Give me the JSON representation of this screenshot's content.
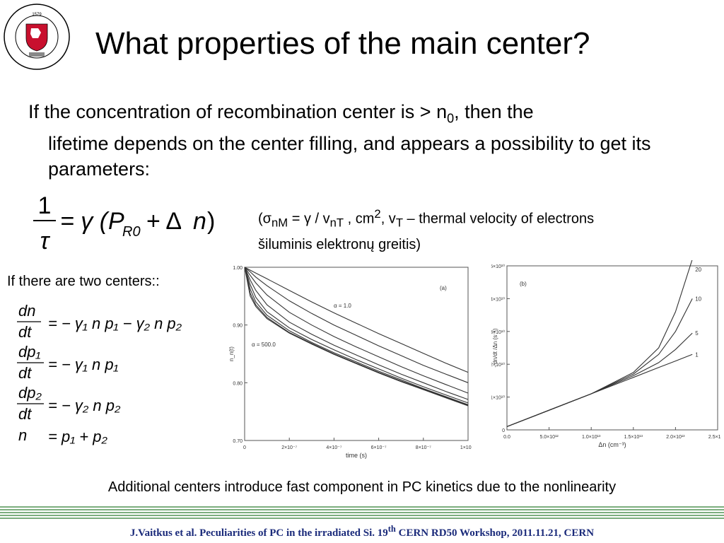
{
  "slide": {
    "title": "What properties of the main center?",
    "paragraph": {
      "part1": "If the concentration of recombination center is > n",
      "sub": "0",
      "part2": ", then the",
      "rest": "lifetime depends on the center filling, and appears a possibility to get its parameters:"
    },
    "formula1": {
      "num": "1",
      "den": "τ",
      "rhs_a": "= γ (",
      "P": "P",
      "R0": "R0",
      "rhs_b": "+ Δ",
      "n": "n",
      "close": ")"
    },
    "note": {
      "line1_a": "(σ",
      "line1_sub1": "nM",
      "line1_b": " = γ / v",
      "line1_sub2": "nT",
      "line1_c": " ,  cm",
      "line1_sup": "2",
      "line1_d": ",   v",
      "line1_sub3": "T",
      "line1_e": " – thermal velocity of electrons",
      "line2": "šiluminis elektronų greitis)"
    },
    "two_centers": "If there are two centers::",
    "equations": {
      "e1": {
        "num": "dn",
        "den": "dt",
        "rhs": "= − γ₁ n p₁ − γ₂ n p₂"
      },
      "e2": {
        "num": "dp₁",
        "den": "dt",
        "rhs": "= − γ₁ n p₁"
      },
      "e3": {
        "num": "dp₂",
        "den": "dt",
        "rhs": "= − γ₂ n p₂"
      },
      "e4": {
        "lhs": "n",
        "rhs": "= p₁ + p₂"
      }
    },
    "caption": "Additional centers introduce  fast component  in PC kinetics due to the nonlinearity",
    "footer": {
      "a": "J.Vaitkus et al. Peculiarities of PC in the irradiated Si. 19",
      "sup": "th",
      "b": " CERN RD50 Workshop, 2011.11.21, CERN"
    },
    "logo": {
      "ring_text": "VILNIAUS UNIVERSITETAS · 1579 · UNIVERSITAS VILNENSIS",
      "year": "1579",
      "shield_color": "#c8102e"
    },
    "colors": {
      "footer_text": "#1a2a7a",
      "rule": "#2e7d32"
    }
  },
  "chart_data": [
    {
      "type": "line",
      "panel_label": "(a)",
      "xlabel": "time (s)",
      "ylabel": "n_n(t)",
      "xlim": [
        0,
        1e-06
      ],
      "ylim": [
        0.7,
        1.0
      ],
      "x_ticks": [
        "0",
        "2×10⁻⁷",
        "4×10⁻⁷",
        "6×10⁻⁷",
        "8×10⁻⁷",
        "1×10⁻⁶"
      ],
      "y_ticks": [
        "0.70",
        "0.80",
        "0.90",
        "1.00"
      ],
      "annotations": [
        "α = 1.0",
        "α = 500.0"
      ],
      "x": [
        0,
        2.5e-08,
        5e-08,
        1e-07,
        2e-07,
        3e-07,
        4e-07,
        5e-07,
        6e-07,
        7e-07,
        8e-07,
        9e-07,
        1e-06
      ],
      "series": [
        {
          "values": [
            1.0,
            0.995,
            0.99,
            0.98,
            0.96,
            0.94,
            0.921,
            0.903,
            0.885,
            0.868,
            0.851,
            0.834,
            0.818
          ]
        },
        {
          "values": [
            1.0,
            0.992,
            0.983,
            0.968,
            0.942,
            0.92,
            0.9,
            0.882,
            0.864,
            0.847,
            0.83,
            0.815,
            0.8
          ]
        },
        {
          "values": [
            1.0,
            0.986,
            0.973,
            0.952,
            0.922,
            0.9,
            0.88,
            0.862,
            0.845,
            0.828,
            0.812,
            0.797,
            0.782
          ]
        },
        {
          "values": [
            1.0,
            0.978,
            0.96,
            0.935,
            0.905,
            0.884,
            0.865,
            0.848,
            0.831,
            0.815,
            0.8,
            0.785,
            0.771
          ]
        },
        {
          "values": [
            1.0,
            0.97,
            0.948,
            0.923,
            0.895,
            0.875,
            0.857,
            0.84,
            0.824,
            0.808,
            0.793,
            0.779,
            0.765
          ]
        },
        {
          "values": [
            1.0,
            0.962,
            0.94,
            0.917,
            0.89,
            0.87,
            0.852,
            0.836,
            0.82,
            0.805,
            0.79,
            0.776,
            0.762
          ]
        },
        {
          "values": [
            1.0,
            0.955,
            0.935,
            0.913,
            0.887,
            0.868,
            0.85,
            0.834,
            0.818,
            0.803,
            0.789,
            0.775,
            0.761
          ]
        },
        {
          "values": [
            1.0,
            0.95,
            0.932,
            0.911,
            0.886,
            0.867,
            0.849,
            0.833,
            0.817,
            0.802,
            0.788,
            0.774,
            0.76
          ]
        }
      ]
    },
    {
      "type": "line",
      "panel_label": "(b)",
      "xlabel": "Δn (cm⁻³)",
      "ylabel": "- dn/dt /Δn (s⁻¹)",
      "xlim": [
        0,
        25000000000000.0
      ],
      "ylim": [
        0,
        50000000000.0
      ],
      "x_ticks": [
        "0.0",
        "5.0×10¹²",
        "1.0×10¹³",
        "1.5×10¹³",
        "2.0×10¹³",
        "2.5×10¹³"
      ],
      "y_ticks": [
        "0",
        "1×10¹⁰",
        "2×10¹⁰",
        "3×10¹⁰",
        "4×10¹⁰",
        "5×10¹⁰"
      ],
      "x": [
        0,
        5000000000000.0,
        10000000000000.0,
        15000000000000.0,
        18000000000000.0,
        20000000000000.0,
        22000000000000.0
      ],
      "series": [
        {
          "name": "1",
          "values": [
            1000000000.0,
            6000000000.0,
            11000000000.0,
            16000000000.0,
            19000000000.0,
            21000000000.0,
            23000000000.0
          ]
        },
        {
          "name": "5",
          "values": [
            1000000000.0,
            6000000000.0,
            11000000000.0,
            16500000000.0,
            20500000000.0,
            24500000000.0,
            29500000000.0
          ]
        },
        {
          "name": "10",
          "values": [
            1000000000.0,
            6000000000.0,
            11000000000.0,
            17000000000.0,
            23000000000.0,
            30000000000.0,
            40000000000.0
          ]
        },
        {
          "name": "20",
          "values": [
            1000000000.0,
            6000000000.0,
            11000000000.0,
            17500000000.0,
            25000000000.0,
            36000000000.0,
            52000000000.0
          ]
        }
      ]
    }
  ]
}
